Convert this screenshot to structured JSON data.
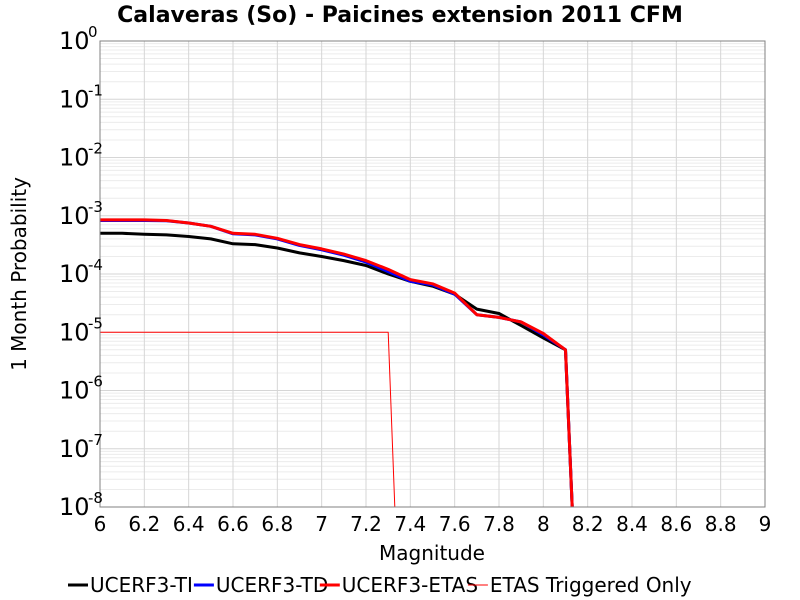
{
  "chart_data": {
    "type": "line",
    "title": "Calaveras (So) - Paicines extension 2011 CFM",
    "xlabel": "Magnitude",
    "ylabel": "1 Month Probability",
    "xlim": [
      6,
      9
    ],
    "ylim": [
      1e-08,
      1
    ],
    "yscale": "log",
    "grid": true,
    "legend_position": "bottom",
    "x_ticks": [
      "6",
      "6.2",
      "6.4",
      "6.6",
      "6.8",
      "7",
      "7.2",
      "7.4",
      "7.6",
      "7.8",
      "8",
      "8.2",
      "8.4",
      "8.6",
      "8.8",
      "9"
    ],
    "y_ticks": [
      {
        "base": "10",
        "exp": "0"
      },
      {
        "base": "10",
        "exp": "-1"
      },
      {
        "base": "10",
        "exp": "-2"
      },
      {
        "base": "10",
        "exp": "-3"
      },
      {
        "base": "10",
        "exp": "-4"
      },
      {
        "base": "10",
        "exp": "-5"
      },
      {
        "base": "10",
        "exp": "-6"
      },
      {
        "base": "10",
        "exp": "-7"
      },
      {
        "base": "10",
        "exp": "-8"
      }
    ],
    "series": [
      {
        "name": "UCERF3-TI",
        "color": "#000000",
        "width": 3,
        "x": [
          6.0,
          6.1,
          6.2,
          6.3,
          6.4,
          6.5,
          6.6,
          6.7,
          6.8,
          6.9,
          7.0,
          7.1,
          7.2,
          7.3,
          7.4,
          7.5,
          7.6,
          7.7,
          7.8,
          7.9,
          8.0,
          8.1,
          8.13
        ],
        "y": [
          0.0005,
          0.0005,
          0.00048,
          0.00047,
          0.00044,
          0.0004,
          0.00033,
          0.00032,
          0.00028,
          0.00023,
          0.0002,
          0.00017,
          0.00014,
          0.0001,
          7.5e-05,
          6.2e-05,
          4.5e-05,
          2.5e-05,
          2.1e-05,
          1.3e-05,
          8e-06,
          5e-06,
          1e-08
        ]
      },
      {
        "name": "UCERF3-TD",
        "color": "#0000ff",
        "width": 3,
        "x": [
          6.0,
          6.1,
          6.2,
          6.3,
          6.4,
          6.5,
          6.6,
          6.7,
          6.8,
          6.9,
          7.0,
          7.1,
          7.2,
          7.3,
          7.4,
          7.5,
          7.6,
          7.7,
          7.8,
          7.9,
          8.0,
          8.1,
          8.13
        ],
        "y": [
          0.00083,
          0.00083,
          0.00083,
          0.00082,
          0.00075,
          0.00066,
          0.00049,
          0.00047,
          0.0004,
          0.00031,
          0.00026,
          0.00021,
          0.00016,
          0.00011,
          7.5e-05,
          6.5e-05,
          4.5e-05,
          2e-05,
          1.8e-05,
          1.5e-05,
          9e-06,
          5e-06,
          1e-08
        ]
      },
      {
        "name": "UCERF3-ETAS",
        "color": "#ff0000",
        "width": 3,
        "x": [
          6.0,
          6.1,
          6.2,
          6.3,
          6.4,
          6.5,
          6.6,
          6.7,
          6.8,
          6.9,
          7.0,
          7.1,
          7.2,
          7.3,
          7.4,
          7.5,
          7.6,
          7.7,
          7.8,
          7.9,
          8.0,
          8.1,
          8.13
        ],
        "y": [
          0.00085,
          0.00085,
          0.00085,
          0.00083,
          0.00075,
          0.00066,
          0.0005,
          0.00048,
          0.00041,
          0.00032,
          0.00027,
          0.00022,
          0.00017,
          0.00012,
          8e-05,
          6.8e-05,
          4.7e-05,
          2e-05,
          1.8e-05,
          1.5e-05,
          9.5e-06,
          5e-06,
          1e-08
        ]
      },
      {
        "name": "ETAS Triggered Only",
        "color": "#ff0000",
        "width": 1,
        "x": [
          6.0,
          7.3,
          7.33
        ],
        "y": [
          1e-05,
          1e-05,
          1e-08
        ]
      }
    ]
  }
}
